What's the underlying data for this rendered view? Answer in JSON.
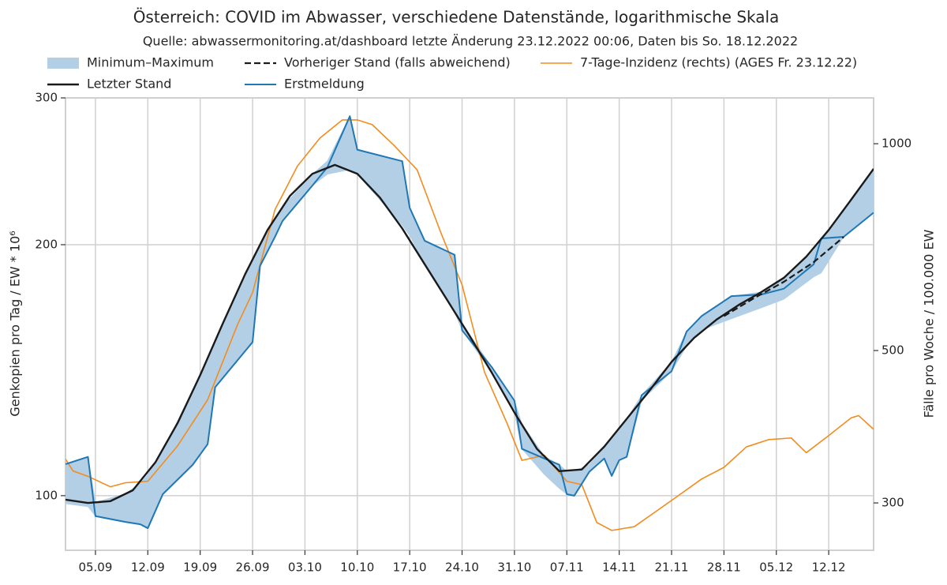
{
  "chart_data": {
    "type": "line",
    "title": "Österreich: COVID im Abwasser, verschiedene Datenstände, logarithmische Skala",
    "subtitle": "Quelle: abwassermonitoring.at/dashboard letzte Änderung 23.12.2022 00:06, Daten bis So. 18.12.2022",
    "ylabel": "Genkopien pro Tag / EW * 10⁶",
    "y2label": "Fälle pro Woche / 100.000 EW",
    "xlim": [
      "01.09",
      "18.12"
    ],
    "xticks": [
      "05.09",
      "12.09",
      "19.09",
      "26.09",
      "03.10",
      "10.10",
      "17.10",
      "24.10",
      "31.10",
      "07.11",
      "14.11",
      "21.11",
      "28.11",
      "05.12",
      "12.12"
    ],
    "ylim": [
      86,
      300
    ],
    "yticks": [
      100,
      200,
      300
    ],
    "y2lim": [
      256,
      1166
    ],
    "y2ticks": [
      300,
      500,
      1000
    ],
    "log_scale": true,
    "grid": true,
    "legend": "top",
    "series": [
      {
        "name": "Minimum–Maximum",
        "kind": "band",
        "color": "#b3cfe6",
        "x": [
          "01.09",
          "04.09",
          "05.09",
          "09.09",
          "11.09",
          "12.09",
          "14.09",
          "18.09",
          "20.09",
          "21.09",
          "26.09",
          "27.09",
          "29.09",
          "30.09",
          "04.10",
          "06.10",
          "09.10",
          "10.10",
          "16.10",
          "17.10",
          "19.10",
          "23.10",
          "24.10",
          "28.10",
          "31.10",
          "01.11",
          "04.11",
          "06.11",
          "07.11",
          "08.11",
          "10.11",
          "12.11",
          "13.11",
          "14.11",
          "15.11",
          "17.11",
          "21.11",
          "23.11",
          "25.11",
          "29.11",
          "03.12",
          "06.12",
          "10.12",
          "11.12",
          "14.12",
          "18.12"
        ],
        "high": [
          109.1,
          111.3,
          98.2,
          100.5,
          103.5,
          106,
          113,
          134,
          145,
          152,
          192,
          200,
          215,
          222,
          243,
          252,
          285.2,
          260,
          251.9,
          221.5,
          202.2,
          194.5,
          161,
          142.5,
          130,
          122,
          111.5,
          108.9,
          107,
          107,
          109,
          114.5,
          117.5,
          120.5,
          123.6,
          132,
          144.7,
          157.3,
          164.2,
          173.5,
          175.5,
          182.5,
          197,
          203.5,
          220,
          246.6
        ],
        "low": [
          97.8,
          97,
          94.5,
          93,
          92.4,
          91.4,
          100.4,
          108.9,
          115.3,
          134.9,
          152.8,
          188.6,
          204.4,
          213.5,
          235.5,
          243,
          246,
          243,
          211,
          205,
          189.5,
          166,
          157.9,
          140.3,
          125.8,
          113.8,
          106,
          102,
          100.4,
          100,
          106.8,
          110.8,
          105.6,
          110.3,
          111.3,
          130,
          141,
          151,
          158,
          163,
          168,
          172,
          183,
          185,
          204.4,
          218.5
        ]
      },
      {
        "name": "Letzter Stand",
        "kind": "line",
        "color": "#1a1a1a",
        "line_style": "solid",
        "width": 2.4,
        "x": [
          "01.09",
          "04.09",
          "07.09",
          "10.09",
          "13.09",
          "16.09",
          "19.09",
          "22.09",
          "25.09",
          "28.09",
          "01.10",
          "04.10",
          "07.10",
          "10.10",
          "13.10",
          "16.10",
          "19.10",
          "22.10",
          "25.10",
          "28.10",
          "31.10",
          "03.11",
          "06.11",
          "09.11",
          "12.11",
          "15.11",
          "18.11",
          "21.11",
          "24.11",
          "27.11",
          "30.11",
          "03.12",
          "06.12",
          "09.12",
          "12.12",
          "15.12",
          "18.12"
        ],
        "values": [
          98.9,
          98,
          98.5,
          101.5,
          109.6,
          122.3,
          139.5,
          160.7,
          184.3,
          208.3,
          228.9,
          243.3,
          249.3,
          243.3,
          227.9,
          209.2,
          189.5,
          171.7,
          155.5,
          140.3,
          125.8,
          113.8,
          107,
          107.5,
          114.5,
          123.6,
          133.5,
          144.7,
          154.6,
          162.6,
          169.4,
          175.5,
          182.5,
          193.5,
          208.3,
          226.5,
          246.6
        ]
      },
      {
        "name": "Vorheriger Stand (falls abweichend)",
        "kind": "line",
        "color": "#1a1a1a",
        "line_style": "dashed",
        "width": 2.2,
        "x": [
          "28.11",
          "02.12",
          "06.12",
          "10.12",
          "14.12"
        ],
        "values": [
          164.2,
          172.5,
          180.5,
          190.6,
          204.3
        ]
      },
      {
        "name": "Erstmeldung",
        "kind": "line",
        "color": "#1f77b4",
        "line_style": "solid",
        "width": 2,
        "x": [
          "01.09",
          "04.09",
          "05.09",
          "09.09",
          "11.09",
          "12.09",
          "14.09",
          "18.09",
          "20.09",
          "21.09",
          "26.09",
          "27.09",
          "29.09",
          "30.09",
          "04.10",
          "06.10",
          "09.10",
          "10.10",
          "16.10",
          "17.10",
          "19.10",
          "23.10",
          "24.10",
          "28.10",
          "31.10",
          "01.11",
          "04.11",
          "06.11",
          "07.11",
          "08.11",
          "10.11",
          "12.11",
          "13.11",
          "14.11",
          "15.11",
          "17.11",
          "21.11",
          "23.11",
          "25.11",
          "29.11",
          "03.12",
          "06.12",
          "10.12",
          "11.12",
          "14.12",
          "18.12"
        ],
        "values": [
          109.1,
          111.3,
          94.5,
          93,
          92.4,
          91.4,
          100.4,
          108.9,
          115.3,
          134.9,
          152.8,
          188.6,
          204.4,
          213.5,
          235.5,
          247.7,
          285.2,
          260,
          251.9,
          221.5,
          202.2,
          194.5,
          157.9,
          142.5,
          130,
          113.8,
          110.8,
          108.9,
          100.4,
          100,
          106.8,
          110.8,
          105.6,
          110.3,
          111.3,
          132,
          141,
          157.3,
          164.2,
          173.5,
          174.3,
          177.1,
          189.5,
          203.5,
          204.4,
          218.5
        ]
      },
      {
        "name": "7-Tage-Inzidenz (rechts) (AGES Fr. 23.12.22)",
        "kind": "line",
        "axis": "y2",
        "color": "#f28c1e",
        "line_style": "solid",
        "width": 1.6,
        "x": [
          "01.09",
          "02.09",
          "04.09",
          "07.09",
          "09.09",
          "12.09",
          "16.09",
          "20.09",
          "24.09",
          "26.09",
          "29.09",
          "02.10",
          "05.10",
          "08.10",
          "10.10",
          "12.10",
          "15.10",
          "18.10",
          "21.10",
          "24.10",
          "27.10",
          "30.10",
          "01.11",
          "04.11",
          "07.11",
          "09.11",
          "11.11",
          "13.11",
          "16.11",
          "19.11",
          "22.11",
          "25.11",
          "28.11",
          "01.12",
          "04.12",
          "07.12",
          "09.12",
          "12.12",
          "15.12",
          "16.12",
          "18.12"
        ],
        "values": [
          347.5,
          334,
          328,
          316.7,
          321,
          322.6,
          363.5,
          424,
          545.7,
          607,
          802,
          928,
          1019,
          1083,
          1083,
          1066,
          992,
          916,
          750,
          623,
          465,
          392,
          346,
          352,
          322.6,
          319,
          281,
          273.6,
          277,
          292,
          308,
          325,
          338,
          362,
          371,
          373,
          355,
          376,
          399,
          402,
          384
        ]
      }
    ]
  }
}
